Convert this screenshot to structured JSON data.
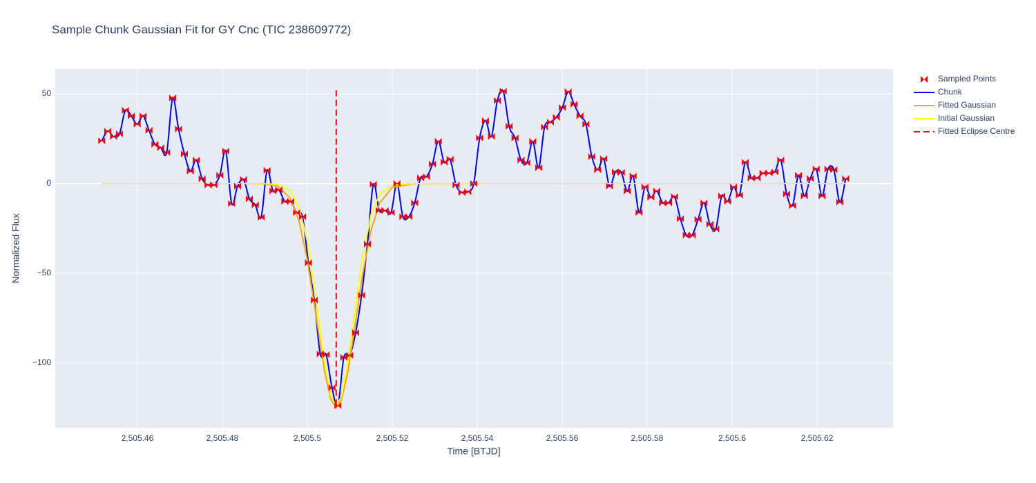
{
  "chart_data": {
    "type": "line",
    "title": "Sample Chunk Gaussian Fit for GY Cnc (TIC 238609772)",
    "xlabel": "Time [BTJD]",
    "ylabel": "Normalized Flux",
    "xlim": [
      2505.44065,
      2505.63789
    ],
    "ylim": [
      -136.15,
      63.85
    ],
    "xticks": [
      {
        "value": 2505.46,
        "label": "2,505.46"
      },
      {
        "value": 2505.48,
        "label": "2,505.48"
      },
      {
        "value": 2505.5,
        "label": "2,505.5"
      },
      {
        "value": 2505.52,
        "label": "2,505.52"
      },
      {
        "value": 2505.54,
        "label": "2,505.54"
      },
      {
        "value": 2505.56,
        "label": "2,505.56"
      },
      {
        "value": 2505.58,
        "label": "2,505.58"
      },
      {
        "value": 2505.6,
        "label": "2,505.6"
      },
      {
        "value": 2505.62,
        "label": "2,505.62"
      }
    ],
    "yticks": [
      {
        "value": -100,
        "label": "−100"
      },
      {
        "value": -50,
        "label": "−50"
      },
      0,
      50
    ],
    "grid": true,
    "legend": "outside-right",
    "series": [
      {
        "name": "Sampled Points",
        "color": "#ff0000",
        "mode": "markers",
        "x": [
          2505.4516,
          2505.45299,
          2505.45438,
          2505.45577,
          2505.45716,
          2505.45855,
          2505.45994,
          2505.46133,
          2505.46272,
          2505.46411,
          2505.4655,
          2505.46689,
          2505.46828,
          2505.46967,
          2505.47106,
          2505.47245,
          2505.47384,
          2505.47523,
          2505.47662,
          2505.47801,
          2505.4794,
          2505.48079,
          2505.48218,
          2505.48357,
          2505.48496,
          2505.48635,
          2505.48774,
          2505.48913,
          2505.49052,
          2505.49191,
          2505.4933,
          2505.49469,
          2505.49608,
          2505.49747,
          2505.49886,
          2505.50025,
          2505.50164,
          2505.50303,
          2505.50442,
          2505.50581,
          2505.5072,
          2505.50859,
          2505.50998,
          2505.51137,
          2505.51276,
          2505.51415,
          2505.51554,
          2505.51693,
          2505.51832,
          2505.51971,
          2505.5211,
          2505.52249,
          2505.52388,
          2505.52527,
          2505.52666,
          2505.52805,
          2505.52944,
          2505.53083,
          2505.53222,
          2505.53361,
          2505.535,
          2505.53639,
          2505.53778,
          2505.53917,
          2505.54056,
          2505.54195,
          2505.54334,
          2505.54473,
          2505.54612,
          2505.54751,
          2505.5489,
          2505.55029,
          2505.55168,
          2505.55307,
          2505.55446,
          2505.55585,
          2505.55724,
          2505.55863,
          2505.56002,
          2505.56141,
          2505.5628,
          2505.56419,
          2505.56558,
          2505.56697,
          2505.56836,
          2505.56975,
          2505.57114,
          2505.57253,
          2505.57392,
          2505.57531,
          2505.5767,
          2505.57809,
          2505.57948,
          2505.58087,
          2505.58226,
          2505.58365,
          2505.58504,
          2505.58643,
          2505.58782,
          2505.58921,
          2505.5906,
          2505.59199,
          2505.59338,
          2505.59477,
          2505.59616,
          2505.59755,
          2505.59894,
          2505.60033,
          2505.60172,
          2505.60311,
          2505.6045,
          2505.60589,
          2505.60728,
          2505.60867,
          2505.61006,
          2505.61145,
          2505.61284,
          2505.61423,
          2505.61562,
          2505.61701,
          2505.6184,
          2505.61979,
          2505.62118,
          2505.62257,
          2505.62396,
          2505.62535,
          2505.62674
        ],
        "values": [
          23.8,
          29.2,
          26.2,
          27.7,
          40.8,
          37.7,
          33.1,
          37.7,
          29.6,
          21.9,
          20.0,
          17.3,
          47.7,
          30.4,
          16.5,
          6.9,
          13.1,
          2.7,
          -0.8,
          -0.8,
          4.6,
          18.1,
          -11.2,
          -1.5,
          2.3,
          -8.5,
          -11.9,
          -18.8,
          7.3,
          -4.2,
          -3.5,
          -10.0,
          -10.0,
          -16.2,
          -18.5,
          -44.2,
          -65.0,
          -95.0,
          -95.4,
          -113.8,
          -123.8,
          -96.9,
          -95.8,
          -83.1,
          -62.3,
          -33.8,
          -0.4,
          -15.0,
          -15.0,
          -16.2,
          0.0,
          -18.5,
          -18.5,
          -10.8,
          3.1,
          3.8,
          10.8,
          23.5,
          11.9,
          13.5,
          -0.8,
          -5.0,
          -4.6,
          0.0,
          25.4,
          35.0,
          26.2,
          46.2,
          51.5,
          31.9,
          25.4,
          13.1,
          11.5,
          23.5,
          8.8,
          31.5,
          34.2,
          36.9,
          42.3,
          51.2,
          44.2,
          37.7,
          33.1,
          15.0,
          7.7,
          13.8,
          -1.5,
          6.5,
          6.2,
          -4.2,
          4.2,
          -16.2,
          -1.9,
          -7.7,
          -4.2,
          -10.8,
          -10.8,
          -7.3,
          -19.6,
          -28.8,
          -28.8,
          -20.0,
          -10.8,
          -22.7,
          -25.4,
          -6.9,
          -10.0,
          -1.9,
          -6.5,
          11.9,
          3.1,
          3.1,
          5.8,
          5.8,
          6.5,
          13.1,
          -5.8,
          -12.3,
          4.6,
          -6.9,
          2.7,
          8.1,
          -6.9,
          8.1,
          7.7,
          -10.4,
          2.7
        ]
      },
      {
        "name": "Chunk",
        "color": "#0000ff",
        "mode": "spline",
        "x": [
          2505.4516,
          2505.45299,
          2505.45438,
          2505.45577,
          2505.45716,
          2505.45855,
          2505.45994,
          2505.46133,
          2505.46272,
          2505.46411,
          2505.4655,
          2505.46689,
          2505.46828,
          2505.46967,
          2505.47106,
          2505.47245,
          2505.47384,
          2505.47523,
          2505.47662,
          2505.47801,
          2505.4794,
          2505.48079,
          2505.48218,
          2505.48357,
          2505.48496,
          2505.48635,
          2505.48774,
          2505.48913,
          2505.49052,
          2505.49191,
          2505.4933,
          2505.49469,
          2505.49608,
          2505.49747,
          2505.49886,
          2505.50025,
          2505.50164,
          2505.50303,
          2505.50442,
          2505.50581,
          2505.5072,
          2505.50859,
          2505.50998,
          2505.51137,
          2505.51276,
          2505.51415,
          2505.51554,
          2505.51693,
          2505.51832,
          2505.51971,
          2505.5211,
          2505.52249,
          2505.52388,
          2505.52527,
          2505.52666,
          2505.52805,
          2505.52944,
          2505.53083,
          2505.53222,
          2505.53361,
          2505.535,
          2505.53639,
          2505.53778,
          2505.53917,
          2505.54056,
          2505.54195,
          2505.54334,
          2505.54473,
          2505.54612,
          2505.54751,
          2505.5489,
          2505.55029,
          2505.55168,
          2505.55307,
          2505.55446,
          2505.55585,
          2505.55724,
          2505.55863,
          2505.56002,
          2505.56141,
          2505.5628,
          2505.56419,
          2505.56558,
          2505.56697,
          2505.56836,
          2505.56975,
          2505.57114,
          2505.57253,
          2505.57392,
          2505.57531,
          2505.5767,
          2505.57809,
          2505.57948,
          2505.58087,
          2505.58226,
          2505.58365,
          2505.58504,
          2505.58643,
          2505.58782,
          2505.58921,
          2505.5906,
          2505.59199,
          2505.59338,
          2505.59477,
          2505.59616,
          2505.59755,
          2505.59894,
          2505.60033,
          2505.60172,
          2505.60311,
          2505.6045,
          2505.60589,
          2505.60728,
          2505.60867,
          2505.61006,
          2505.61145,
          2505.61284,
          2505.61423,
          2505.61562,
          2505.61701,
          2505.6184,
          2505.61979,
          2505.62118,
          2505.62257,
          2505.62396,
          2505.62535,
          2505.62674
        ],
        "values": [
          23.8,
          29.2,
          26.2,
          27.7,
          40.8,
          37.7,
          33.1,
          37.7,
          29.6,
          21.9,
          20.0,
          17.3,
          47.7,
          30.4,
          16.5,
          6.9,
          13.1,
          2.7,
          -0.8,
          -0.8,
          4.6,
          18.1,
          -11.2,
          -1.5,
          2.3,
          -8.5,
          -11.9,
          -18.8,
          7.3,
          -4.2,
          -3.5,
          -10.0,
          -10.0,
          -16.2,
          -18.5,
          -44.2,
          -65.0,
          -95.0,
          -95.4,
          -113.8,
          -123.8,
          -96.9,
          -95.8,
          -83.1,
          -62.3,
          -33.8,
          -0.4,
          -15.0,
          -15.0,
          -16.2,
          0.0,
          -18.5,
          -18.5,
          -10.8,
          3.1,
          3.8,
          10.8,
          23.5,
          11.9,
          13.5,
          -0.8,
          -5.0,
          -4.6,
          0.0,
          25.4,
          35.0,
          26.2,
          46.2,
          51.5,
          31.9,
          25.4,
          13.1,
          11.5,
          23.5,
          8.8,
          31.5,
          34.2,
          36.9,
          42.3,
          51.2,
          44.2,
          37.7,
          33.1,
          15.0,
          7.7,
          13.8,
          -1.5,
          6.5,
          6.2,
          -4.2,
          4.2,
          -16.2,
          -1.9,
          -7.7,
          -4.2,
          -10.8,
          -10.8,
          -7.3,
          -19.6,
          -28.8,
          -28.8,
          -20.0,
          -10.8,
          -22.7,
          -25.4,
          -6.9,
          -10.0,
          -1.9,
          -6.5,
          11.9,
          3.1,
          3.1,
          5.8,
          5.8,
          6.5,
          13.1,
          -5.8,
          -12.3,
          4.6,
          -6.9,
          2.7,
          8.1,
          -6.9,
          8.1,
          7.7,
          -10.4,
          2.7
        ]
      },
      {
        "name": "Fitted Gaussian",
        "color": "#ffa500",
        "mode": "lines",
        "x": [
          2505.4516,
          2505.47,
          2505.485,
          2505.49,
          2505.493,
          2505.496,
          2505.498,
          2505.5,
          2505.502,
          2505.504,
          2505.5055,
          2505.5068,
          2505.508,
          2505.5095,
          2505.511,
          2505.513,
          2505.515,
          2505.517,
          2505.52,
          2505.525,
          2505.54,
          2505.58,
          2505.6267
        ],
        "values": [
          0,
          0,
          0,
          -0.17,
          -1.5,
          -8.2,
          -20.5,
          -42.5,
          -73.0,
          -104.1,
          -120.2,
          -125,
          -120.9,
          -105.5,
          -82.9,
          -51.0,
          -26.1,
          -11.0,
          -2.1,
          -0.1,
          0,
          0,
          0
        ]
      },
      {
        "name": "Initial Gaussian",
        "color": "#ffff00",
        "mode": "lines",
        "x": [
          2505.4516,
          2505.47,
          2505.485,
          2505.49,
          2505.493,
          2505.496,
          2505.498,
          2505.5,
          2505.502,
          2505.504,
          2505.5055,
          2505.5068,
          2505.508,
          2505.5095,
          2505.511,
          2505.513,
          2505.515,
          2505.517,
          2505.52,
          2505.525,
          2505.54,
          2505.58,
          2505.6267
        ],
        "values": [
          0,
          0,
          0,
          -0.03,
          -0.5,
          -4.1,
          -13.0,
          -32.2,
          -63.4,
          -98.7,
          -118.1,
          -124,
          -118.9,
          -100.3,
          -74.2,
          -40.4,
          -17.5,
          -6.0,
          -0.8,
          0,
          0,
          0,
          0
        ]
      },
      {
        "name": "Fitted Eclipse Centre",
        "color": "#ff0000",
        "mode": "dash",
        "x": [
          2505.5068,
          2505.5068
        ],
        "values": [
          52,
          -125
        ]
      }
    ]
  }
}
